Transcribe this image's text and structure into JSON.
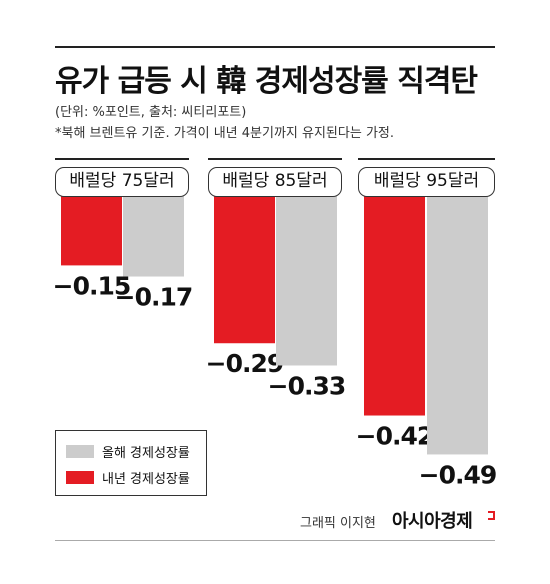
{
  "header": {
    "title": "유가 급등 시 韓 경제성장률 직격탄",
    "unit": "(단위: %포인트, 출처: 씨티리포트)",
    "note": "*북해 브렌트유 기준. 가격이 내년 4분기까지 유지된다는 가정."
  },
  "chart_data": {
    "type": "bar",
    "categories": [
      "배럴당 75달러",
      "배럴당 85달러",
      "배럴당 95달러"
    ],
    "series": [
      {
        "name": "내년 경제성장률",
        "values": [
          -0.15,
          -0.29,
          -0.42
        ],
        "color": "#e41c23"
      },
      {
        "name": "올해 경제성장률",
        "values": [
          -0.17,
          -0.33,
          -0.49
        ],
        "color": "#cccccc"
      }
    ],
    "value_labels": {
      "next_year": [
        "−0.15",
        "−0.29",
        "−0.42"
      ],
      "this_year": [
        "−0.17",
        "−0.33",
        "−0.49"
      ]
    },
    "ylim": [
      -0.49,
      0
    ]
  },
  "legend": {
    "items": [
      {
        "label": "올해 경제성장률",
        "color": "#cccccc"
      },
      {
        "label": "내년 경제성장률",
        "color": "#e41c23"
      }
    ]
  },
  "footer": {
    "credit": "그래픽 이지현",
    "brand": "아시아경제"
  }
}
